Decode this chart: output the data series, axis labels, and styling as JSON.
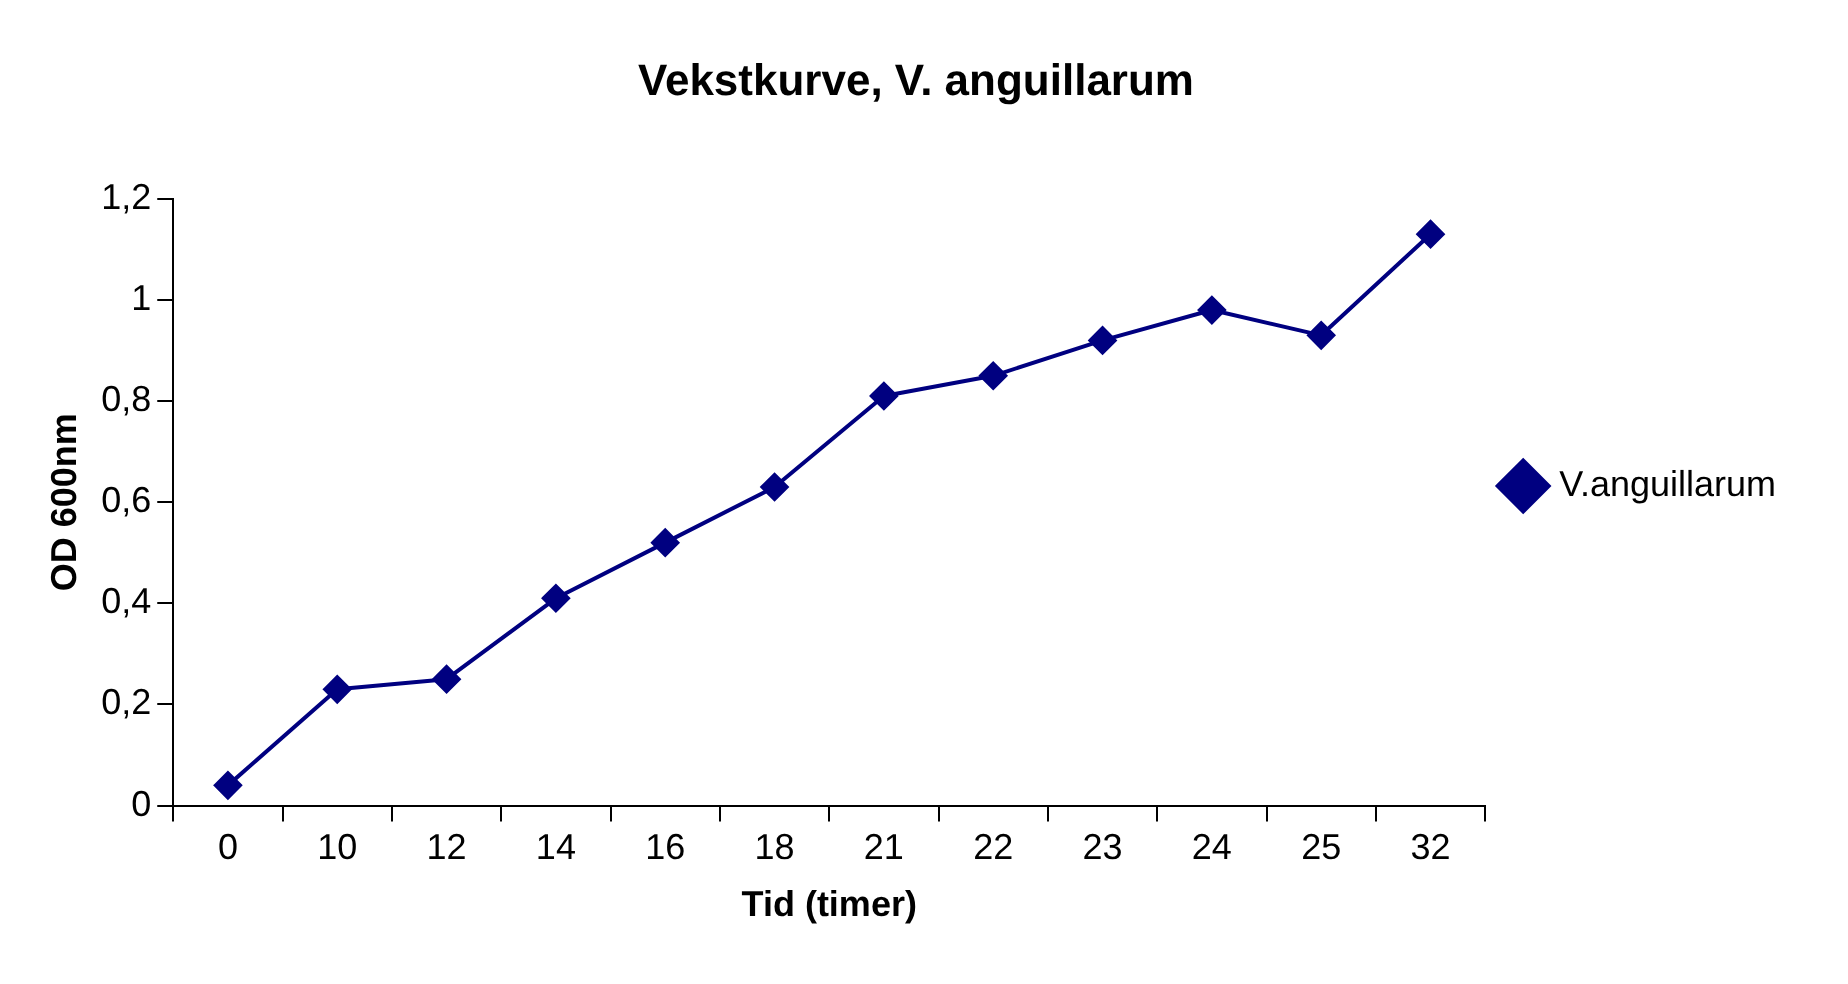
{
  "chart_data": {
    "type": "line",
    "title": "Vekstkurve, V. anguillarum",
    "xlabel": "Tid (timer)",
    "ylabel": "OD 600nm",
    "categories": [
      "0",
      "10",
      "12",
      "14",
      "16",
      "18",
      "21",
      "22",
      "23",
      "24",
      "25",
      "32"
    ],
    "series": [
      {
        "name": "V.anguillarum",
        "color": "#000080",
        "values": [
          0.04,
          0.23,
          0.25,
          0.41,
          0.52,
          0.63,
          0.81,
          0.85,
          0.92,
          0.98,
          0.93,
          1.13
        ]
      }
    ],
    "ylim": [
      0,
      1.2
    ],
    "yticks": [
      {
        "value": 0,
        "label": "0"
      },
      {
        "value": 0.2,
        "label": "0,2"
      },
      {
        "value": 0.4,
        "label": "0,4"
      },
      {
        "value": 0.6,
        "label": "0,6"
      },
      {
        "value": 0.8,
        "label": "0,8"
      },
      {
        "value": 1,
        "label": "1"
      },
      {
        "value": 1.2,
        "label": "1,2"
      }
    ],
    "grid": false,
    "legend": "right",
    "marker": "diamond",
    "line_style": "solid"
  }
}
